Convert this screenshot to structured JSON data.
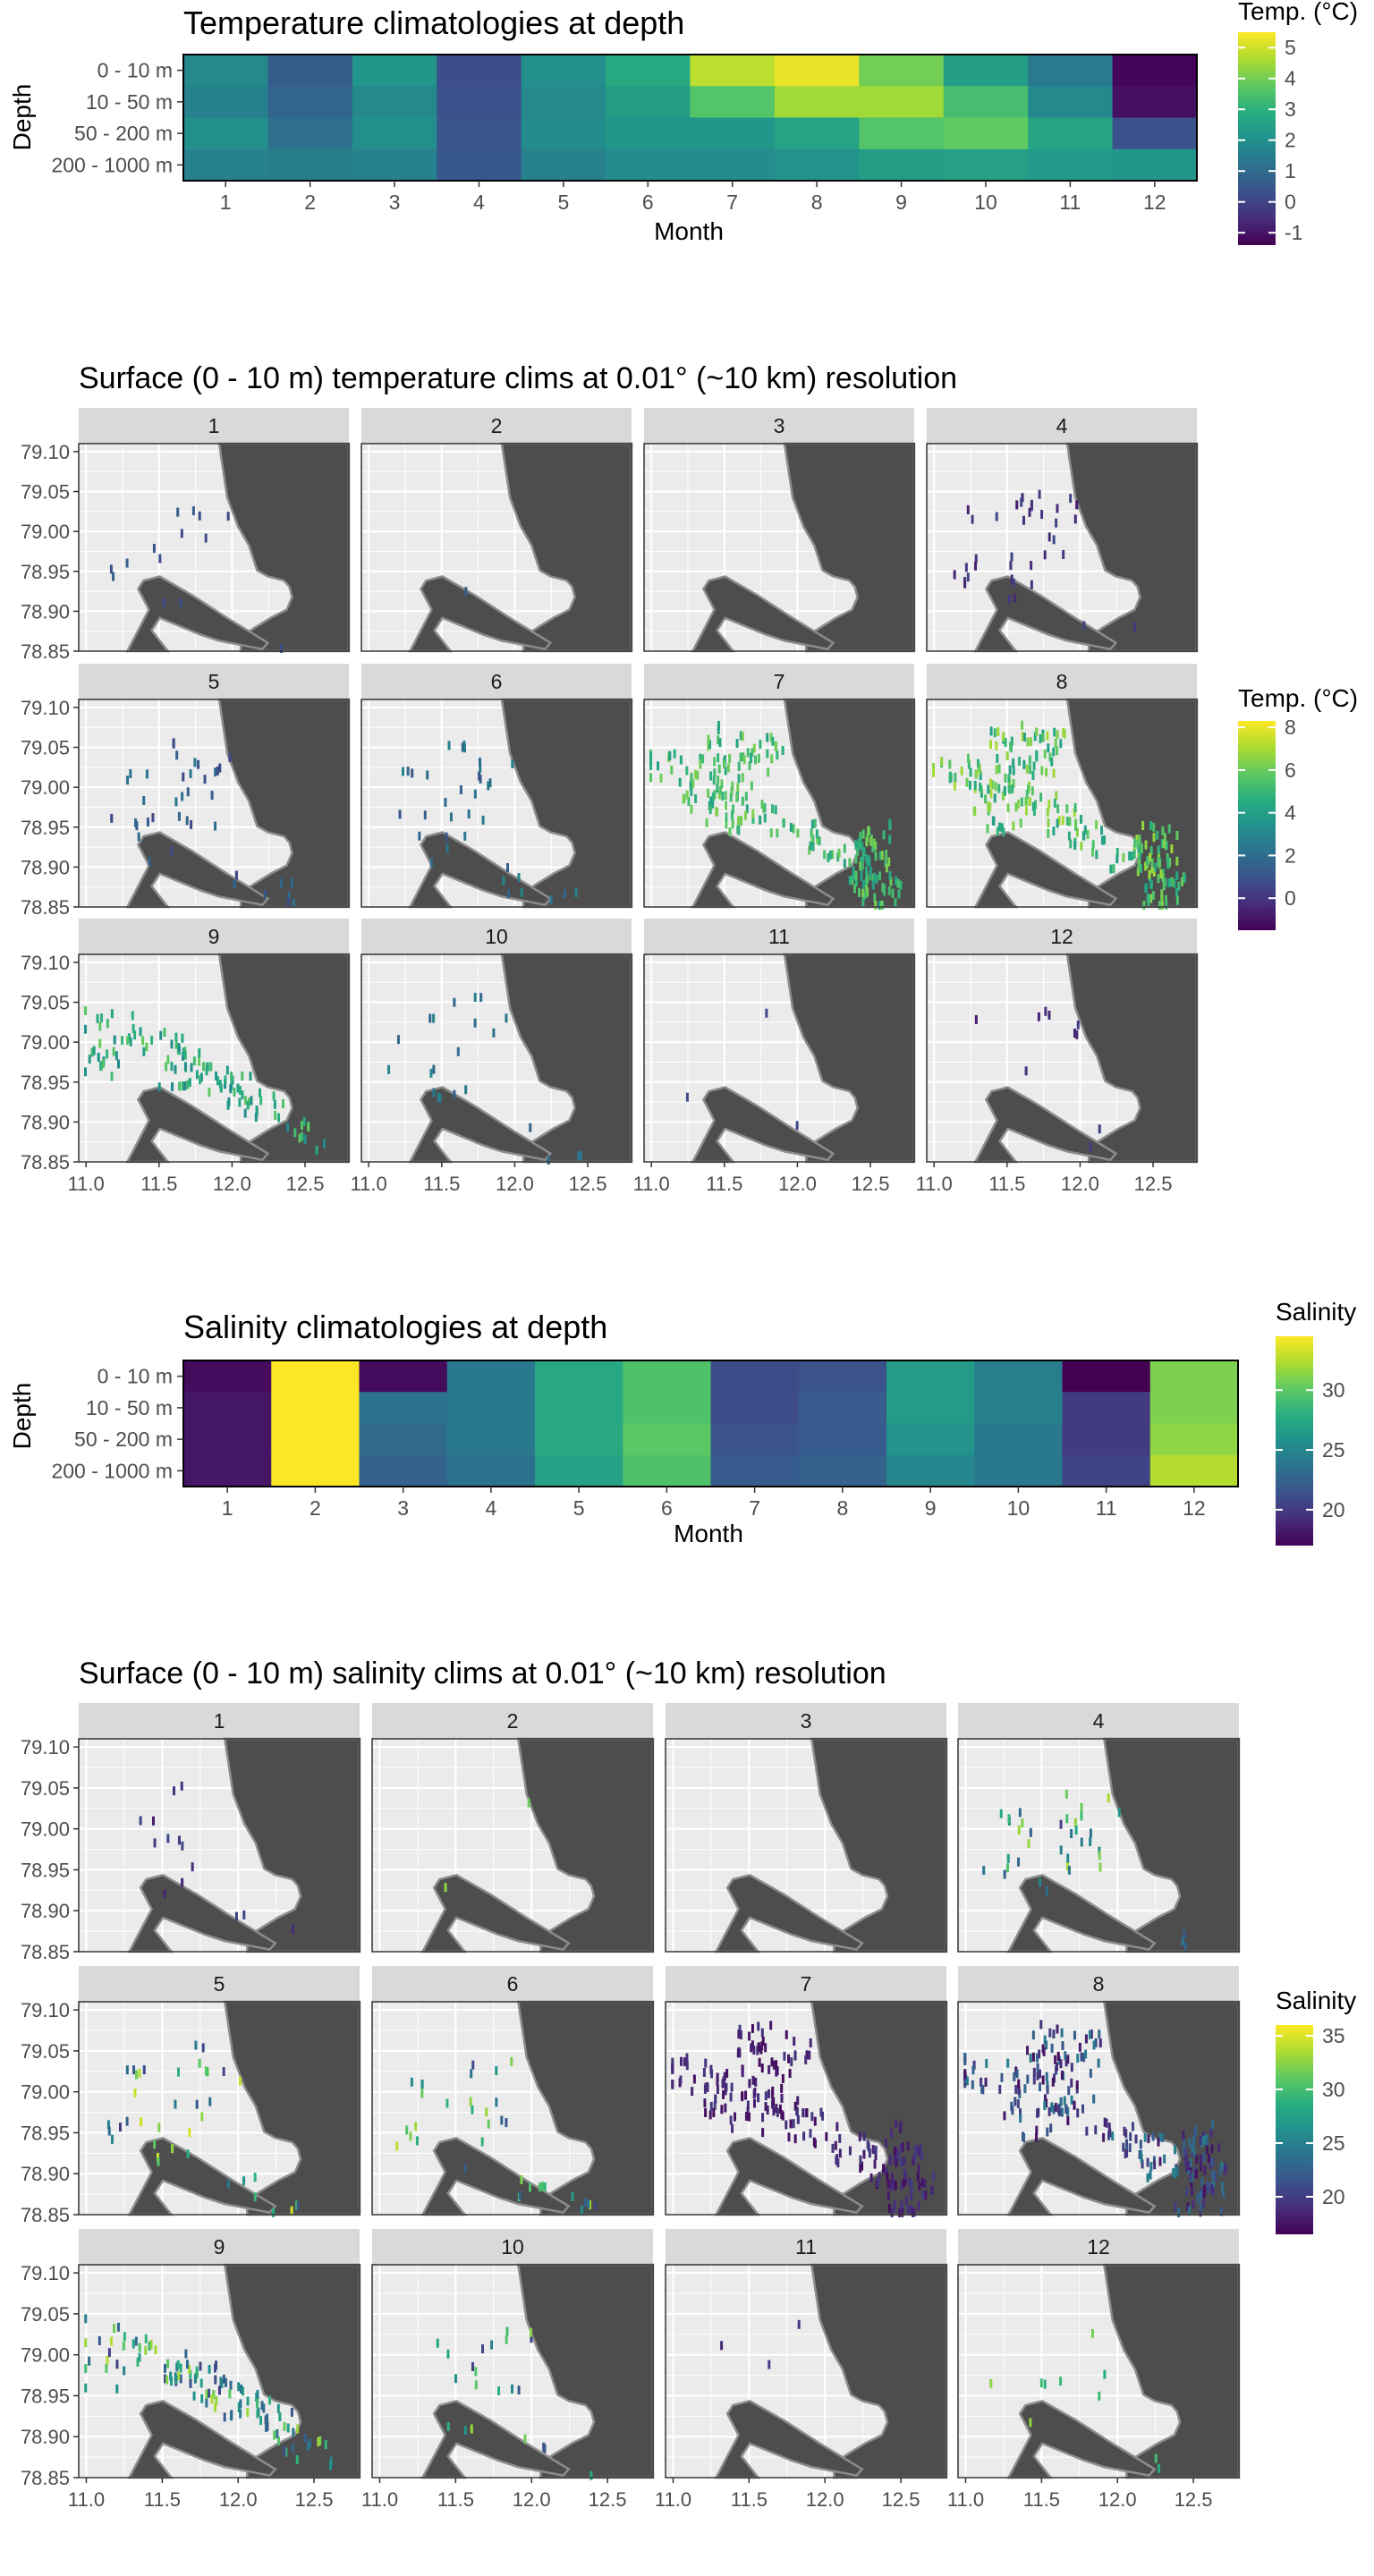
{
  "figure": {
    "colors": {
      "land": "#4d4d4d",
      "panel_bg": "#ebebeb",
      "strip_bg": "#d9d9d9",
      "grid": "#ffffff",
      "coast": "#8c8c8c",
      "text": "#000000",
      "tick_text": "#4d4d4d"
    }
  },
  "chart_data": [
    {
      "type": "heatmap",
      "title": "Temperature climatologies at depth",
      "xlabel": "Month",
      "ylabel": "Depth",
      "x": [
        "1",
        "2",
        "3",
        "4",
        "5",
        "6",
        "7",
        "8",
        "9",
        "10",
        "11",
        "12"
      ],
      "y": [
        "0 - 10 m",
        "10 - 50 m",
        "50 - 200 m",
        "200 - 1000 m"
      ],
      "values": [
        [
          1.8,
          0.6,
          2.2,
          0.2,
          2.0,
          2.8,
          4.8,
          5.3,
          4.0,
          2.4,
          1.4,
          -1.3
        ],
        [
          1.6,
          0.8,
          1.8,
          0.3,
          1.8,
          2.4,
          3.6,
          4.5,
          4.5,
          3.4,
          1.8,
          -1.1
        ],
        [
          2.0,
          1.1,
          2.0,
          0.4,
          1.9,
          2.2,
          2.2,
          2.6,
          3.6,
          3.8,
          2.6,
          0.3
        ],
        [
          1.6,
          1.5,
          1.6,
          0.5,
          1.6,
          1.9,
          1.9,
          2.1,
          2.4,
          2.5,
          2.3,
          2.2
        ]
      ],
      "legend": {
        "title": "Temp. (°C)",
        "ticks": [
          "5",
          "4",
          "3",
          "2",
          "1",
          "0",
          "-1"
        ],
        "range": [
          -1.4,
          5.5
        ],
        "position": "right"
      }
    },
    {
      "type": "scatter",
      "title": "Surface (0 - 10 m) temperature clims at 0.01° (~10 km) resolution",
      "facets": [
        "1",
        "2",
        "3",
        "4",
        "5",
        "6",
        "7",
        "8",
        "9",
        "10",
        "11",
        "12"
      ],
      "point_counts": [
        14,
        1,
        0,
        38,
        40,
        36,
        240,
        260,
        120,
        22,
        3,
        10
      ],
      "point_value_range": [
        [
          0.5,
          1.5
        ],
        [
          1.5,
          2.0
        ],
        [
          0,
          0
        ],
        [
          -0.8,
          0.6
        ],
        [
          0.5,
          2.5
        ],
        [
          1.0,
          3.0
        ],
        [
          4.0,
          6.5
        ],
        [
          4.0,
          7.0
        ],
        [
          3.0,
          6.0
        ],
        [
          1.5,
          3.0
        ],
        [
          0.5,
          1.5
        ],
        [
          -0.8,
          0.5
        ]
      ],
      "x_ticks": [
        "11.0",
        "11.5",
        "12.0",
        "12.5"
      ],
      "y_ticks": [
        "79.10",
        "79.05",
        "79.00",
        "78.95",
        "78.90",
        "78.85"
      ],
      "xlim": [
        10.95,
        12.8
      ],
      "ylim": [
        78.85,
        79.11
      ],
      "legend": {
        "title": "Temp. (°C)",
        "ticks": [
          "8",
          "6",
          "4",
          "2",
          "0"
        ],
        "range": [
          -1.5,
          8.3
        ],
        "position": "right"
      }
    },
    {
      "type": "heatmap",
      "title": "Salinity climatologies at depth",
      "xlabel": "Month",
      "ylabel": "Depth",
      "x": [
        "1",
        "2",
        "3",
        "4",
        "5",
        "6",
        "7",
        "8",
        "9",
        "10",
        "11",
        "12"
      ],
      "y": [
        "0 - 10 m",
        "10 - 50 m",
        "50 - 200 m",
        "200 - 1000 m"
      ],
      "values": [
        [
          17.5,
          34.5,
          17.5,
          24.0,
          27.5,
          29.5,
          21.0,
          21.5,
          26.5,
          24.5,
          17.0,
          31.0
        ],
        [
          18.0,
          34.5,
          23.5,
          24.0,
          27.5,
          29.5,
          21.0,
          22.0,
          26.5,
          24.5,
          20.0,
          31.0
        ],
        [
          18.0,
          34.5,
          23.0,
          24.0,
          27.5,
          30.0,
          21.5,
          22.0,
          26.0,
          24.0,
          20.0,
          31.5
        ],
        [
          18.0,
          34.5,
          22.5,
          23.5,
          27.0,
          29.5,
          22.0,
          22.5,
          25.0,
          24.0,
          20.5,
          32.5
        ]
      ],
      "legend": {
        "title": "Salinity",
        "ticks": [
          "30",
          "25",
          "20"
        ],
        "range": [
          17.0,
          34.5
        ],
        "position": "right"
      }
    },
    {
      "type": "scatter",
      "title": "Surface (0 - 10 m) salinity clims at 0.01° (~10 km) resolution",
      "facets": [
        "1",
        "2",
        "3",
        "4",
        "5",
        "6",
        "7",
        "8",
        "9",
        "10",
        "11",
        "12"
      ],
      "point_counts": [
        14,
        2,
        0,
        38,
        40,
        36,
        240,
        260,
        120,
        22,
        3,
        10
      ],
      "point_value_range": [
        [
          18,
          21
        ],
        [
          30,
          33
        ],
        [
          0,
          0
        ],
        [
          20,
          34
        ],
        [
          20,
          35
        ],
        [
          20,
          34
        ],
        [
          17,
          20
        ],
        [
          17,
          25
        ],
        [
          20,
          34
        ],
        [
          20,
          33
        ],
        [
          18,
          20
        ],
        [
          28,
          33
        ]
      ],
      "x_ticks": [
        "11.0",
        "11.5",
        "12.0",
        "12.5"
      ],
      "y_ticks": [
        "79.10",
        "79.05",
        "79.00",
        "78.95",
        "78.90",
        "78.85"
      ],
      "xlim": [
        10.95,
        12.8
      ],
      "ylim": [
        78.85,
        79.11
      ],
      "legend": {
        "title": "Salinity",
        "ticks": [
          "35",
          "30",
          "25",
          "20"
        ],
        "range": [
          16.5,
          36.0
        ],
        "position": "right"
      }
    }
  ]
}
